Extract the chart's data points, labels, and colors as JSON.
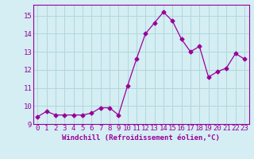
{
  "x": [
    0,
    1,
    2,
    3,
    4,
    5,
    6,
    7,
    8,
    9,
    10,
    11,
    12,
    13,
    14,
    15,
    16,
    17,
    18,
    19,
    20,
    21,
    22,
    23
  ],
  "y": [
    9.4,
    9.7,
    9.5,
    9.5,
    9.5,
    9.5,
    9.6,
    9.9,
    9.9,
    9.5,
    11.1,
    12.6,
    14.0,
    14.6,
    15.2,
    14.7,
    13.7,
    13.0,
    13.3,
    11.6,
    11.9,
    12.1,
    12.9,
    12.6
  ],
  "line_color": "#990099",
  "marker": "D",
  "marker_size": 2.5,
  "bg_color": "#d4eef4",
  "grid_color": "#b0d8d8",
  "xlabel": "Windchill (Refroidissement éolien,°C)",
  "xlabel_fontsize": 6.5,
  "tick_fontsize": 6.5,
  "xlim": [
    -0.5,
    23.5
  ],
  "ylim": [
    9,
    15.6
  ],
  "yticks": [
    9,
    10,
    11,
    12,
    13,
    14,
    15
  ],
  "xticks": [
    0,
    1,
    2,
    3,
    4,
    5,
    6,
    7,
    8,
    9,
    10,
    11,
    12,
    13,
    14,
    15,
    16,
    17,
    18,
    19,
    20,
    21,
    22,
    23
  ]
}
